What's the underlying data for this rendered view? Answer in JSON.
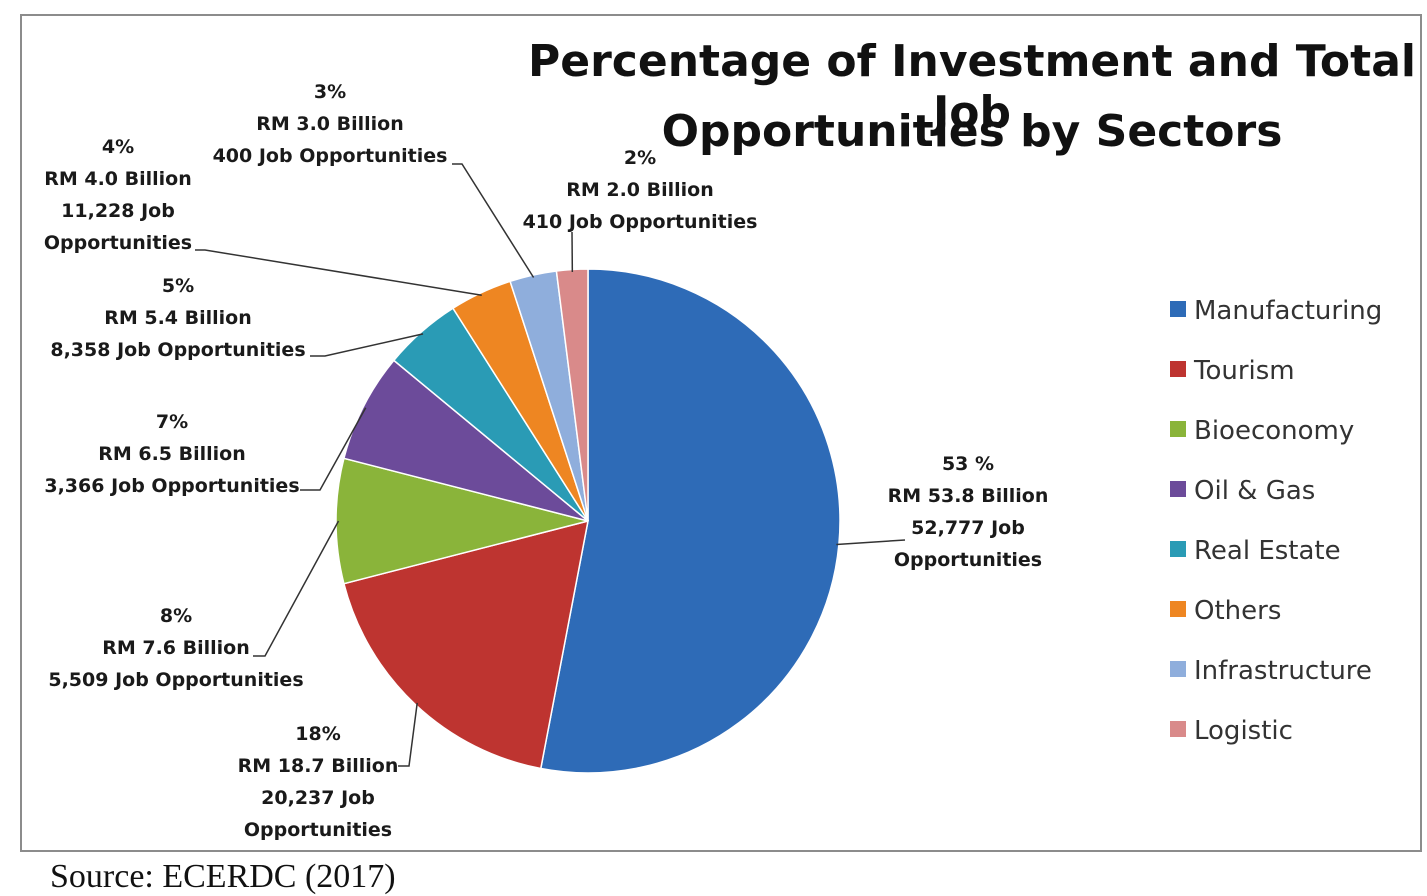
{
  "chart_data": {
    "type": "pie",
    "title": "Percentage of Investment and Total Job Opportunities by Sectors",
    "title_lines": [
      "Percentage of Investment and Total Job",
      "Opportunities by Sectors"
    ],
    "legend_position": "right",
    "slices": [
      {
        "name": "Manufacturing",
        "percent": 53,
        "percent_label": "53 %",
        "investment": "RM 53.8 Billion",
        "jobs_lines": [
          "52,777 Job",
          "Opportunities"
        ],
        "color": "#2E6BB7"
      },
      {
        "name": "Tourism",
        "percent": 18,
        "percent_label": "18%",
        "investment": "RM 18.7 Billion",
        "jobs_lines": [
          "20,237 Job",
          "Opportunities"
        ],
        "color": "#BE3430"
      },
      {
        "name": "Bioeconomy",
        "percent": 8,
        "percent_label": "8%",
        "investment": "RM 7.6 Billion",
        "jobs_lines": [
          "5,509 Job Opportunities"
        ],
        "color": "#8AB43A"
      },
      {
        "name": "Oil & Gas",
        "percent": 7,
        "percent_label": "7%",
        "investment": "RM 6.5 Billion",
        "jobs_lines": [
          "3,366 Job Opportunities"
        ],
        "color": "#6C4B9A"
      },
      {
        "name": "Real Estate",
        "percent": 5,
        "percent_label": "5%",
        "investment": "RM 5.4 Billion",
        "jobs_lines": [
          "8,358 Job Opportunities"
        ],
        "color": "#2A9BB5"
      },
      {
        "name": "Others",
        "percent": 4,
        "percent_label": "4%",
        "investment": "RM 4.0 Billion",
        "jobs_lines": [
          "11,228 Job",
          "Opportunities"
        ],
        "color": "#EE8622"
      },
      {
        "name": "Infrastructure",
        "percent": 3,
        "percent_label": "3%",
        "investment": "RM 3.0 Billion",
        "jobs_lines": [
          "400 Job Opportunities"
        ],
        "color": "#8FAEDC"
      },
      {
        "name": "Logistic",
        "percent": 2,
        "percent_label": "2%",
        "investment": "RM 2.0 Billion",
        "jobs_lines": [
          "410 Job Opportunities"
        ],
        "color": "#D98A8A"
      }
    ]
  },
  "source": "Source: ECERDC (2017)"
}
